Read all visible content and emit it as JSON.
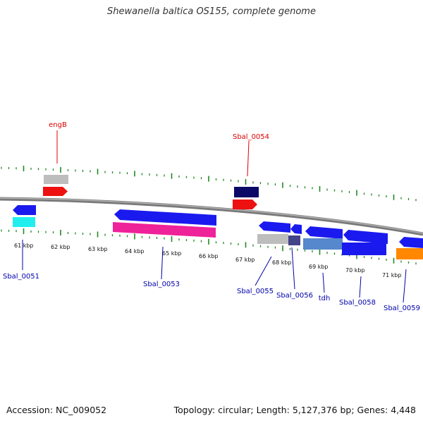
{
  "title": "Shewanella baltica OS155, complete genome",
  "footer": {
    "accession": "Accession: NC_009052",
    "summary": "Topology: circular; Length: 5,127,376 bp; Genes: 4,448"
  },
  "scale_labels": [
    "61 kbp",
    "62 kbp",
    "63 kbp",
    "64 kbp",
    "65 kbp",
    "66 kbp",
    "67 kbp",
    "68 kbp",
    "69 kbp",
    "70 kbp",
    "71 kbp"
  ],
  "gene_labels_top": [
    "engB",
    "Sbal_0054"
  ],
  "gene_labels_bottom": [
    "Sbal_0051",
    "Sbal_0053",
    "Sbal_0055",
    "Sbal_0056",
    "tdh",
    "Sbal_0058",
    "Sbal_0059"
  ],
  "colors": {
    "top_label": "#dd0000",
    "bottom_label": "#0000aa",
    "backbone": "#808080",
    "tick": "#228822",
    "blue": "#1a1aee",
    "red": "#ee1111",
    "navy": "#0a0a66",
    "gray": "#bdbdbd",
    "cyan": "#22eeee",
    "magenta": "#ee2299",
    "steelblue": "#5588cc",
    "darkslate": "#444488",
    "orange": "#ff8800"
  }
}
